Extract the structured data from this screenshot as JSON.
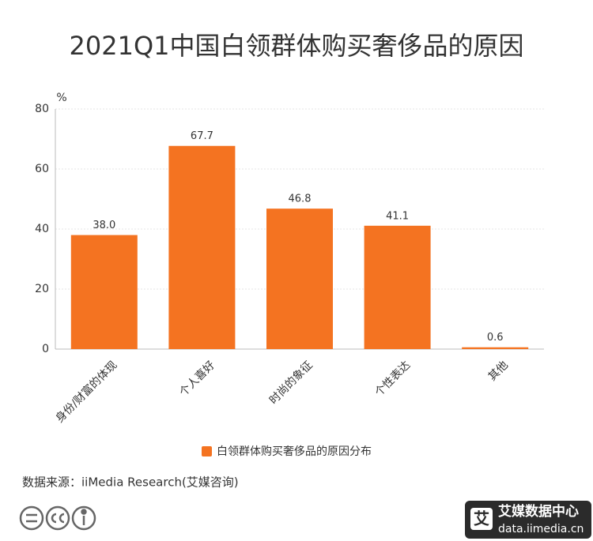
{
  "chart_data": {
    "type": "bar",
    "title": "2021Q1中国白领群体购买奢侈品的原因",
    "y_unit": "%",
    "categories": [
      "身份/财富的体现",
      "个人喜好",
      "时尚的象征",
      "个性表达",
      "其他"
    ],
    "series": [
      {
        "name": "白领群体购买奢侈品的原因分布",
        "color": "#f47321",
        "values": [
          38.0,
          67.7,
          46.8,
          41.1,
          0.6
        ],
        "value_labels": [
          "38.0",
          "67.7",
          "46.8",
          "41.1",
          "0.6"
        ]
      }
    ],
    "ylim": [
      0,
      80
    ],
    "yticks": [
      0,
      20,
      40,
      60,
      80
    ],
    "grid": true,
    "source": "数据来源：iiMedia Research(艾媒咨询)"
  },
  "logo": {
    "mark": "艾",
    "name": "艾媒数据中心",
    "url": "data.iimedia.cn"
  }
}
